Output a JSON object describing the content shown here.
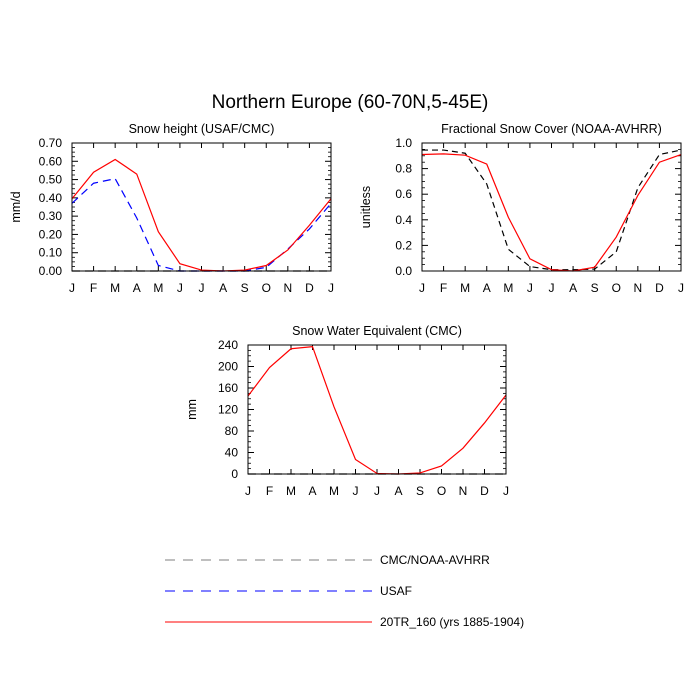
{
  "main_title": "Northern Europe (60-70N,5-45E)",
  "chart_data": [
    {
      "type": "line",
      "title": "Snow height (USAF/CMC)",
      "xlabel": "",
      "ylabel": "mm/d",
      "categories": [
        "J",
        "F",
        "M",
        "A",
        "M",
        "J",
        "J",
        "A",
        "S",
        "O",
        "N",
        "D",
        "J"
      ],
      "ylim": [
        0,
        0.7
      ],
      "yticks": [
        "0.00",
        "0.10",
        "0.20",
        "0.30",
        "0.40",
        "0.50",
        "0.60",
        "0.70"
      ],
      "ytick_values": [
        0,
        0.1,
        0.2,
        0.3,
        0.4,
        0.5,
        0.6,
        0.7
      ],
      "series": [
        {
          "name": "CMC/NOAA-AVHRR",
          "color": "#000000",
          "dash": "8,5",
          "values": [
            0,
            0,
            0,
            0,
            0,
            0,
            0,
            0,
            0,
            0,
            0,
            0,
            0
          ]
        },
        {
          "name": "USAF",
          "color": "#0000ff",
          "dash": "8,5",
          "values": [
            0.37,
            0.48,
            0.505,
            0.29,
            0.03,
            0.0,
            0.0,
            0.0,
            0.0,
            0.02,
            0.12,
            0.23,
            0.37
          ]
        },
        {
          "name": "20TR_160",
          "color": "#ff0000",
          "dash": "",
          "values": [
            0.395,
            0.54,
            0.61,
            0.53,
            0.215,
            0.04,
            0.005,
            0.0,
            0.005,
            0.03,
            0.115,
            0.25,
            0.395
          ]
        }
      ]
    },
    {
      "type": "line",
      "title": "Fractional Snow Cover (NOAA-AVHRR)",
      "xlabel": "",
      "ylabel": "unitless",
      "categories": [
        "J",
        "F",
        "M",
        "A",
        "M",
        "J",
        "J",
        "A",
        "S",
        "O",
        "N",
        "D",
        "J"
      ],
      "ylim": [
        0,
        1.0
      ],
      "yticks": [
        "0.0",
        "0.2",
        "0.4",
        "0.6",
        "0.8",
        "1.0"
      ],
      "ytick_values": [
        0,
        0.2,
        0.4,
        0.6,
        0.8,
        1.0
      ],
      "series": [
        {
          "name": "CMC/NOAA-AVHRR",
          "color": "#000000",
          "dash": "6,4",
          "values": [
            0.945,
            0.945,
            0.92,
            0.68,
            0.17,
            0.035,
            0.01,
            0.01,
            0.015,
            0.15,
            0.65,
            0.91,
            0.945
          ]
        },
        {
          "name": "20TR_160",
          "color": "#ff0000",
          "dash": "",
          "values": [
            0.91,
            0.915,
            0.905,
            0.835,
            0.42,
            0.095,
            0.01,
            0.0,
            0.03,
            0.265,
            0.59,
            0.85,
            0.91
          ]
        }
      ]
    },
    {
      "type": "line",
      "title": "Snow Water Equivalent (CMC)",
      "xlabel": "",
      "ylabel": "mm",
      "categories": [
        "J",
        "F",
        "M",
        "A",
        "M",
        "J",
        "J",
        "A",
        "S",
        "O",
        "N",
        "D",
        "J"
      ],
      "ylim": [
        0,
        240
      ],
      "yticks": [
        "0",
        "40",
        "80",
        "120",
        "160",
        "200",
        "240"
      ],
      "ytick_values": [
        0,
        40,
        80,
        120,
        160,
        200,
        240
      ],
      "series": [
        {
          "name": "CMC/NOAA-AVHRR",
          "color": "#000000",
          "dash": "8,5",
          "values": [
            0,
            0,
            0,
            0,
            0,
            0,
            0,
            0,
            0,
            0,
            0,
            0,
            0
          ]
        },
        {
          "name": "20TR_160",
          "color": "#ff0000",
          "dash": "",
          "values": [
            145,
            198,
            233,
            237,
            125,
            27,
            1,
            0,
            2,
            15,
            48,
            95,
            147
          ]
        }
      ]
    }
  ],
  "legend": [
    {
      "label": "CMC/NOAA-AVHRR",
      "color": "#7f7f7f",
      "dash": "10,8"
    },
    {
      "label": "USAF",
      "color": "#0000ff",
      "dash": "10,8"
    },
    {
      "label": "20TR_160 (yrs 1885-1904)",
      "color": "#ff0000",
      "dash": ""
    }
  ]
}
